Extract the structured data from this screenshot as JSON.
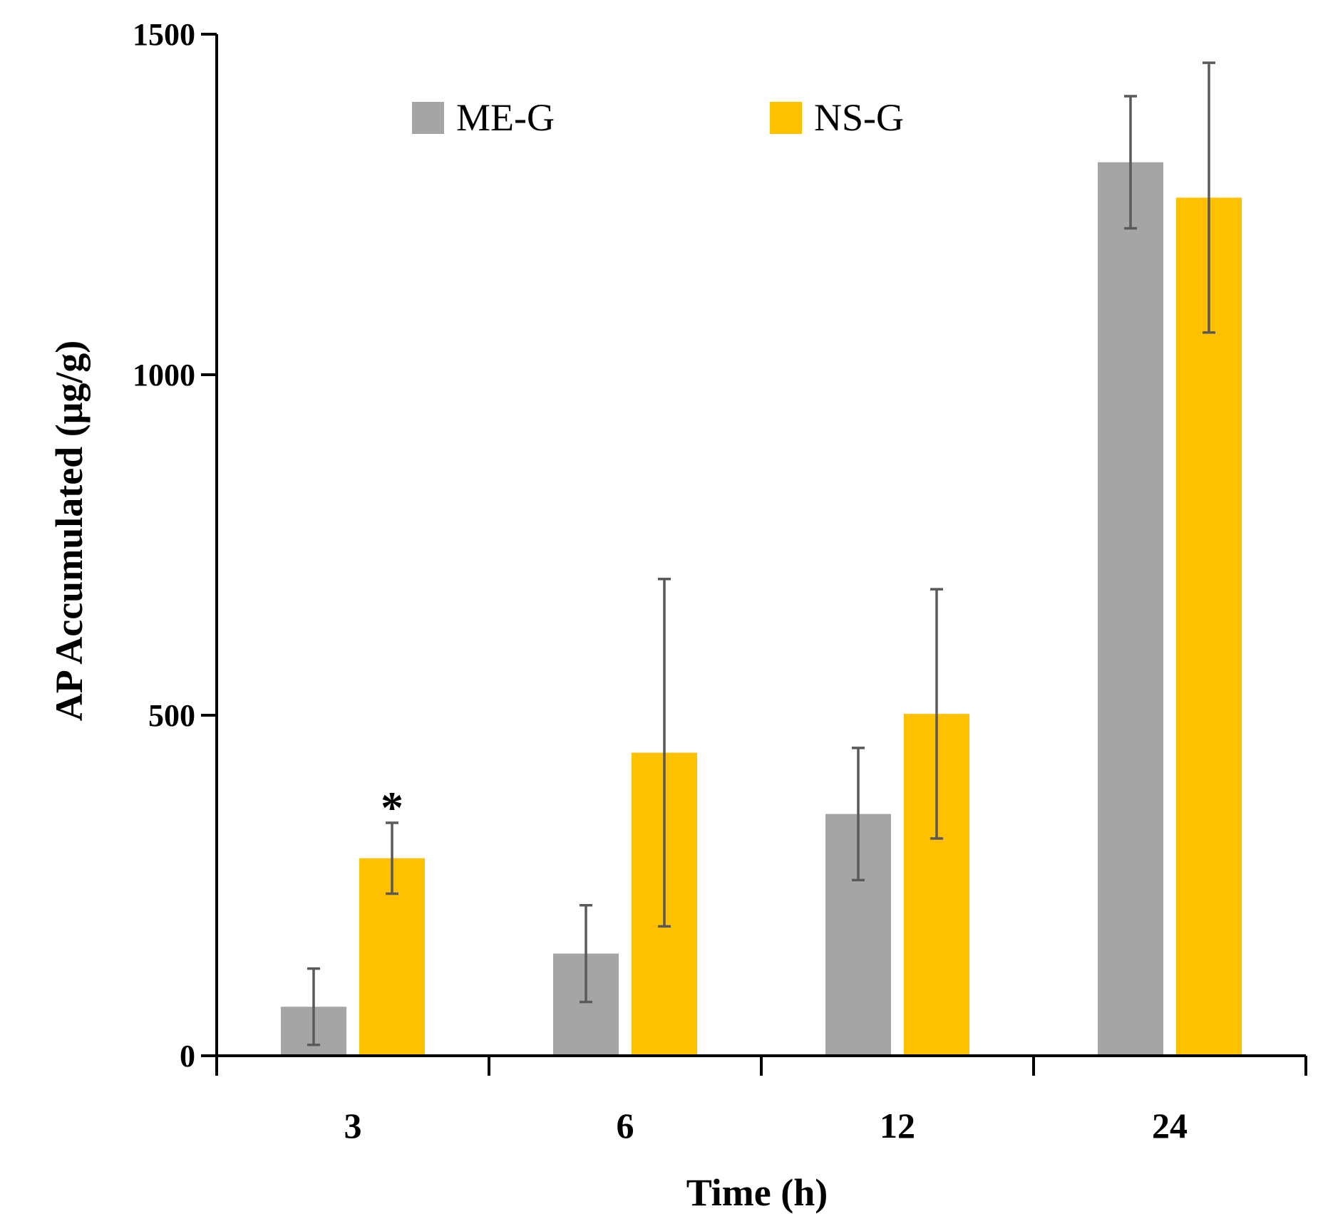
{
  "chart_data": {
    "type": "bar",
    "title": "",
    "xlabel": "Time (h)",
    "ylabel": "AP  Accumulated (μg/g)",
    "categories": [
      "3",
      "6",
      "12",
      "24"
    ],
    "ylim": [
      0,
      1500
    ],
    "yticks": [
      0,
      500,
      1000,
      1500
    ],
    "grid": false,
    "legend_position": "top",
    "series": [
      {
        "name": "ME-G",
        "color": "#A5A5A5",
        "values": [
          72,
          150,
          355,
          1312
        ],
        "errors": [
          56,
          71,
          97,
          97
        ]
      },
      {
        "name": "NS-G",
        "color": "#FFC000",
        "values": [
          290,
          445,
          502,
          1260
        ],
        "errors": [
          52,
          255,
          183,
          198
        ]
      }
    ],
    "annotations": [
      {
        "text": "*",
        "category": "3",
        "series": "NS-G"
      }
    ],
    "error_bar_color": "#595959",
    "axis_color": "#000000"
  }
}
